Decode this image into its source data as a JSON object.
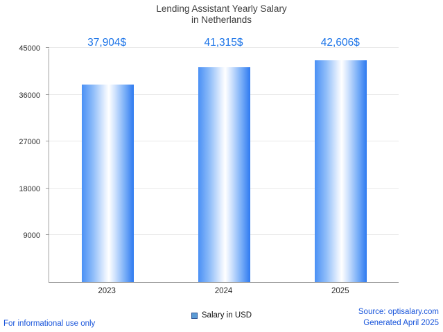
{
  "title": {
    "line1": "Lending Assistant Yearly Salary",
    "line2": "in Netherlands"
  },
  "chart_data": {
    "type": "bar",
    "title": "Lending Assistant Yearly Salary in Netherlands",
    "categories": [
      "2023",
      "2024",
      "2025"
    ],
    "values": [
      37904,
      41315,
      42606
    ],
    "value_labels": [
      "37,904$",
      "41,315$",
      "42,606$"
    ],
    "series_name": "Salary in USD",
    "xlabel": "",
    "ylabel": "",
    "ylim": [
      0,
      45000
    ],
    "yticks": [
      9000,
      18000,
      27000,
      36000,
      45000
    ],
    "grid": true,
    "legend_position": "bottom-center",
    "colors": {
      "bar_edge_left": "#4a90f5",
      "bar_mid": "#ffffff",
      "bar_edge_right": "#2e7af0",
      "value_label": "#1a73e8",
      "gridline": "#e9e9e9",
      "axis": "#9e9e9e"
    }
  },
  "legend": {
    "label": "Salary in USD",
    "marker_color": "#5b9bd5"
  },
  "footer": {
    "left": "For informational use only",
    "source": "Source: optisalary.com",
    "generated": "Generated April 2025"
  }
}
